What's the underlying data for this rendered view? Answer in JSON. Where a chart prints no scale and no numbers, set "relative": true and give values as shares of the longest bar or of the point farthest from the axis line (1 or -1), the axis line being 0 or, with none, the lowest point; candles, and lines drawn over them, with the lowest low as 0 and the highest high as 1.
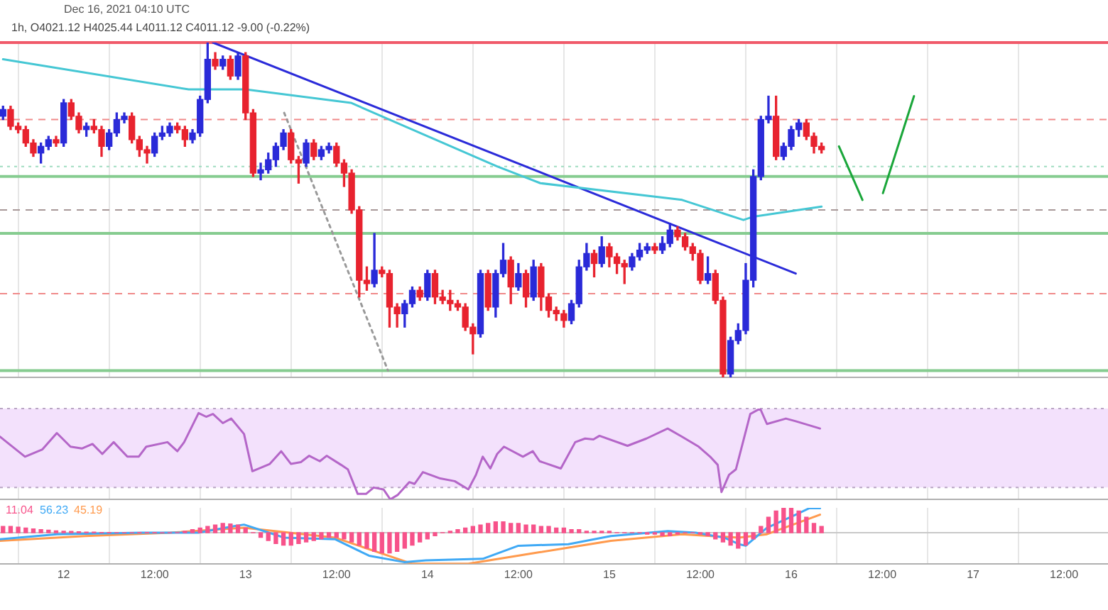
{
  "chart_data": [
    {
      "type": "candlestick",
      "relative": true,
      "grid": "x",
      "legend": false,
      "tick_labels": false,
      "annotations": [
        "Dec 16, 2021 04:10 UTC",
        "1h, O4021.12 H4025.44 L4011.12 C4011.12 -9.00 (-0.22%)"
      ],
      "xlim": [
        "2021-12-11T15:36",
        "2021-12-17T17:48"
      ],
      "xticks": [
        {
          "value": "2021-12-12",
          "label": null
        },
        {
          "value": "2021-12-12T12:00",
          "label": null
        },
        {
          "value": "2021-12-13",
          "label": null
        },
        {
          "value": "2021-12-13T12:00",
          "label": null
        },
        {
          "value": "2021-12-14",
          "label": null
        },
        {
          "value": "2021-12-14T12:00",
          "label": null
        },
        {
          "value": "2021-12-15",
          "label": null
        },
        {
          "value": "2021-12-15T12:00",
          "label": null
        },
        {
          "value": "2021-12-16",
          "label": null
        },
        {
          "value": "2021-12-16T12:00",
          "label": null
        },
        {
          "value": "2021-12-17",
          "label": null
        },
        {
          "value": "2021-12-17T12:00",
          "label": null
        }
      ],
      "x": [
        "2021-12-11T16:00",
        "2021-12-11T17:00",
        "2021-12-11T18:00",
        "2021-12-11T19:00",
        "2021-12-11T20:00",
        "2021-12-11T21:00",
        "2021-12-11T22:00",
        "2021-12-11T23:00",
        "2021-12-12T00:00",
        "2021-12-12T01:00",
        "2021-12-12T02:00",
        "2021-12-12T03:00",
        "2021-12-12T04:00",
        "2021-12-12T05:00",
        "2021-12-12T06:00",
        "2021-12-12T07:00",
        "2021-12-12T08:00",
        "2021-12-12T09:00",
        "2021-12-12T10:00",
        "2021-12-12T11:00",
        "2021-12-12T12:00",
        "2021-12-12T13:00",
        "2021-12-12T14:00",
        "2021-12-12T15:00",
        "2021-12-12T16:00",
        "2021-12-12T17:00",
        "2021-12-12T18:00",
        "2021-12-12T19:00",
        "2021-12-12T20:00",
        "2021-12-12T21:00",
        "2021-12-12T22:00",
        "2021-12-12T23:00",
        "2021-12-13T00:00",
        "2021-12-13T01:00",
        "2021-12-13T02:00",
        "2021-12-13T03:00",
        "2021-12-13T04:00",
        "2021-12-13T05:00",
        "2021-12-13T06:00",
        "2021-12-13T07:00",
        "2021-12-13T08:00",
        "2021-12-13T09:00",
        "2021-12-13T10:00",
        "2021-12-13T11:00",
        "2021-12-13T12:00",
        "2021-12-13T13:00",
        "2021-12-13T14:00",
        "2021-12-13T15:00",
        "2021-12-13T16:00",
        "2021-12-13T17:00",
        "2021-12-13T18:00",
        "2021-12-13T19:00",
        "2021-12-13T20:00",
        "2021-12-13T21:00",
        "2021-12-13T22:00",
        "2021-12-13T23:00",
        "2021-12-14T00:00",
        "2021-12-14T01:00",
        "2021-12-14T02:00",
        "2021-12-14T03:00",
        "2021-12-14T04:00",
        "2021-12-14T05:00",
        "2021-12-14T06:00",
        "2021-12-14T07:00",
        "2021-12-14T08:00",
        "2021-12-14T09:00",
        "2021-12-14T10:00",
        "2021-12-14T11:00",
        "2021-12-14T12:00",
        "2021-12-14T13:00",
        "2021-12-14T14:00",
        "2021-12-14T15:00",
        "2021-12-14T16:00",
        "2021-12-14T17:00",
        "2021-12-14T18:00",
        "2021-12-14T19:00",
        "2021-12-14T20:00",
        "2021-12-14T21:00",
        "2021-12-14T22:00",
        "2021-12-14T23:00",
        "2021-12-15T00:00",
        "2021-12-15T01:00",
        "2021-12-15T02:00",
        "2021-12-15T03:00",
        "2021-12-15T04:00",
        "2021-12-15T05:00",
        "2021-12-15T06:00",
        "2021-12-15T07:00",
        "2021-12-15T08:00",
        "2021-12-15T09:00",
        "2021-12-15T10:00",
        "2021-12-15T11:00",
        "2021-12-15T12:00",
        "2021-12-15T13:00",
        "2021-12-15T14:00",
        "2021-12-15T15:00",
        "2021-12-15T16:00",
        "2021-12-15T17:00",
        "2021-12-15T18:00",
        "2021-12-15T19:00",
        "2021-12-15T20:00",
        "2021-12-15T21:00",
        "2021-12-15T22:00",
        "2021-12-15T23:00",
        "2021-12-16T00:00",
        "2021-12-16T01:00",
        "2021-12-16T02:00",
        "2021-12-16T03:00",
        "2021-12-16T04:00"
      ],
      "ohlc": [
        [
          0.78,
          0.81,
          0.77,
          0.8
        ],
        [
          0.8,
          0.81,
          0.74,
          0.75
        ],
        [
          0.75,
          0.76,
          0.73,
          0.74
        ],
        [
          0.74,
          0.75,
          0.69,
          0.7
        ],
        [
          0.7,
          0.71,
          0.66,
          0.67
        ],
        [
          0.67,
          0.7,
          0.64,
          0.69
        ],
        [
          0.69,
          0.72,
          0.68,
          0.71
        ],
        [
          0.71,
          0.72,
          0.69,
          0.7
        ],
        [
          0.7,
          0.83,
          0.69,
          0.82
        ],
        [
          0.82,
          0.83,
          0.77,
          0.78
        ],
        [
          0.78,
          0.79,
          0.73,
          0.74
        ],
        [
          0.74,
          0.76,
          0.72,
          0.75
        ],
        [
          0.75,
          0.77,
          0.73,
          0.74
        ],
        [
          0.74,
          0.75,
          0.66,
          0.69
        ],
        [
          0.69,
          0.74,
          0.68,
          0.73
        ],
        [
          0.73,
          0.79,
          0.72,
          0.77
        ],
        [
          0.77,
          0.79,
          0.76,
          0.78
        ],
        [
          0.78,
          0.79,
          0.7,
          0.71
        ],
        [
          0.71,
          0.72,
          0.66,
          0.68
        ],
        [
          0.68,
          0.69,
          0.64,
          0.67
        ],
        [
          0.67,
          0.73,
          0.66,
          0.72
        ],
        [
          0.72,
          0.75,
          0.71,
          0.73
        ],
        [
          0.73,
          0.76,
          0.72,
          0.75
        ],
        [
          0.75,
          0.76,
          0.73,
          0.74
        ],
        [
          0.74,
          0.75,
          0.69,
          0.71
        ],
        [
          0.71,
          0.74,
          0.7,
          0.73
        ],
        [
          0.73,
          0.84,
          0.72,
          0.83
        ],
        [
          0.83,
          1.0,
          0.82,
          0.95
        ],
        [
          0.95,
          0.97,
          0.92,
          0.93
        ],
        [
          0.93,
          0.96,
          0.92,
          0.95
        ],
        [
          0.95,
          0.96,
          0.89,
          0.9
        ],
        [
          0.9,
          0.97,
          0.89,
          0.96
        ],
        [
          0.96,
          0.97,
          0.77,
          0.79
        ],
        [
          0.79,
          0.8,
          0.6,
          0.61
        ],
        [
          0.61,
          0.64,
          0.59,
          0.62
        ],
        [
          0.62,
          0.67,
          0.61,
          0.65
        ],
        [
          0.65,
          0.7,
          0.63,
          0.69
        ],
        [
          0.69,
          0.74,
          0.68,
          0.73
        ],
        [
          0.73,
          0.74,
          0.64,
          0.65
        ],
        [
          0.65,
          0.66,
          0.58,
          0.64
        ],
        [
          0.64,
          0.71,
          0.63,
          0.7
        ],
        [
          0.7,
          0.71,
          0.65,
          0.66
        ],
        [
          0.66,
          0.69,
          0.65,
          0.68
        ],
        [
          0.68,
          0.7,
          0.67,
          0.69
        ],
        [
          0.69,
          0.7,
          0.63,
          0.64
        ],
        [
          0.64,
          0.65,
          0.57,
          0.61
        ],
        [
          0.61,
          0.62,
          0.49,
          0.5
        ],
        [
          0.5,
          0.51,
          0.24,
          0.29
        ],
        [
          0.29,
          0.33,
          0.26,
          0.28
        ],
        [
          0.28,
          0.43,
          0.27,
          0.32
        ],
        [
          0.32,
          0.33,
          0.3,
          0.31
        ],
        [
          0.31,
          0.32,
          0.15,
          0.21
        ],
        [
          0.21,
          0.22,
          0.15,
          0.19
        ],
        [
          0.19,
          0.23,
          0.15,
          0.22
        ],
        [
          0.22,
          0.27,
          0.21,
          0.26
        ],
        [
          0.26,
          0.27,
          0.23,
          0.24
        ],
        [
          0.24,
          0.32,
          0.23,
          0.31
        ],
        [
          0.31,
          0.32,
          0.22,
          0.24
        ],
        [
          0.24,
          0.26,
          0.22,
          0.23
        ],
        [
          0.23,
          0.26,
          0.2,
          0.22
        ],
        [
          0.22,
          0.23,
          0.2,
          0.21
        ],
        [
          0.21,
          0.22,
          0.14,
          0.15
        ],
        [
          0.15,
          0.16,
          0.07,
          0.13
        ],
        [
          0.13,
          0.32,
          0.12,
          0.31
        ],
        [
          0.31,
          0.32,
          0.2,
          0.21
        ],
        [
          0.21,
          0.32,
          0.18,
          0.31
        ],
        [
          0.31,
          0.4,
          0.3,
          0.35
        ],
        [
          0.35,
          0.36,
          0.22,
          0.27
        ],
        [
          0.27,
          0.34,
          0.26,
          0.31
        ],
        [
          0.31,
          0.32,
          0.21,
          0.24
        ],
        [
          0.24,
          0.35,
          0.23,
          0.33
        ],
        [
          0.33,
          0.34,
          0.2,
          0.24
        ],
        [
          0.24,
          0.25,
          0.18,
          0.2
        ],
        [
          0.2,
          0.21,
          0.17,
          0.19
        ],
        [
          0.19,
          0.2,
          0.15,
          0.17
        ],
        [
          0.17,
          0.23,
          0.16,
          0.22
        ],
        [
          0.22,
          0.35,
          0.21,
          0.33
        ],
        [
          0.33,
          0.4,
          0.32,
          0.37
        ],
        [
          0.37,
          0.38,
          0.3,
          0.34
        ],
        [
          0.34,
          0.42,
          0.33,
          0.39
        ],
        [
          0.39,
          0.4,
          0.33,
          0.36
        ],
        [
          0.36,
          0.37,
          0.31,
          0.34
        ],
        [
          0.34,
          0.35,
          0.28,
          0.33
        ],
        [
          0.33,
          0.37,
          0.32,
          0.36
        ],
        [
          0.36,
          0.4,
          0.35,
          0.38
        ],
        [
          0.38,
          0.4,
          0.37,
          0.39
        ],
        [
          0.39,
          0.4,
          0.37,
          0.38
        ],
        [
          0.38,
          0.42,
          0.37,
          0.4
        ],
        [
          0.4,
          0.46,
          0.39,
          0.44
        ],
        [
          0.44,
          0.45,
          0.41,
          0.42
        ],
        [
          0.42,
          0.43,
          0.38,
          0.39
        ],
        [
          0.39,
          0.4,
          0.35,
          0.37
        ],
        [
          0.37,
          0.38,
          0.28,
          0.29
        ],
        [
          0.29,
          0.36,
          0.28,
          0.31
        ],
        [
          0.31,
          0.32,
          0.22,
          0.23
        ],
        [
          0.23,
          0.24,
          0.0,
          0.01
        ],
        [
          0.01,
          0.12,
          0.0,
          0.11
        ],
        [
          0.11,
          0.16,
          0.1,
          0.14
        ],
        [
          0.14,
          0.34,
          0.13,
          0.29
        ],
        [
          0.29,
          0.62,
          0.27,
          0.6
        ],
        [
          0.6,
          0.78,
          0.59,
          0.77
        ],
        [
          0.77,
          0.84,
          0.76,
          0.78
        ],
        [
          0.78,
          0.84,
          0.65,
          0.66
        ],
        [
          0.66,
          0.7,
          0.65,
          0.69
        ],
        [
          0.69,
          0.75,
          0.68,
          0.74
        ],
        [
          0.74,
          0.77,
          0.72,
          0.76
        ],
        [
          0.76,
          0.77,
          0.71,
          0.72
        ],
        [
          0.72,
          0.73,
          0.67,
          0.69
        ],
        [
          0.69,
          0.7,
          0.67,
          0.68
        ]
      ],
      "colors": [
        "#2a2ad8",
        "#e8232f",
        "#e8232f",
        "#e8232f",
        "#e8232f",
        "#2a2ad8",
        "#2a2ad8",
        "#e8232f",
        "#2a2ad8",
        "#e8232f",
        "#e8232f",
        "#2a2ad8",
        "#e8232f",
        "#e8232f",
        "#2a2ad8",
        "#2a2ad8",
        "#2a2ad8",
        "#e8232f",
        "#e8232f",
        "#e8232f",
        "#2a2ad8",
        "#2a2ad8",
        "#2a2ad8",
        "#e8232f",
        "#e8232f",
        "#2a2ad8",
        "#2a2ad8",
        "#2a2ad8",
        "#e8232f",
        "#2a2ad8",
        "#e8232f",
        "#2a2ad8",
        "#e8232f",
        "#e8232f",
        "#2a2ad8",
        "#2a2ad8",
        "#2a2ad8",
        "#2a2ad8",
        "#e8232f",
        "#e8232f",
        "#2a2ad8",
        "#e8232f",
        "#2a2ad8",
        "#2a2ad8",
        "#e8232f",
        "#e8232f",
        "#e8232f",
        "#e8232f",
        "#e8232f",
        "#2a2ad8",
        "#e8232f",
        "#e8232f",
        "#e8232f",
        "#2a2ad8",
        "#2a2ad8",
        "#e8232f",
        "#2a2ad8",
        "#e8232f",
        "#e8232f",
        "#e8232f",
        "#e8232f",
        "#e8232f",
        "#e8232f",
        "#2a2ad8",
        "#e8232f",
        "#2a2ad8",
        "#2a2ad8",
        "#e8232f",
        "#2a2ad8",
        "#e8232f",
        "#2a2ad8",
        "#e8232f",
        "#e8232f",
        "#e8232f",
        "#e8232f",
        "#2a2ad8",
        "#2a2ad8",
        "#2a2ad8",
        "#e8232f",
        "#2a2ad8",
        "#e8232f",
        "#e8232f",
        "#e8232f",
        "#2a2ad8",
        "#2a2ad8",
        "#2a2ad8",
        "#e8232f",
        "#2a2ad8",
        "#2a2ad8",
        "#e8232f",
        "#e8232f",
        "#e8232f",
        "#e8232f",
        "#2a2ad8",
        "#e8232f",
        "#e8232f",
        "#2a2ad8",
        "#2a2ad8",
        "#2a2ad8",
        "#2a2ad8",
        "#2a2ad8",
        "#2a2ad8",
        "#e8232f",
        "#2a2ad8",
        "#2a2ad8",
        "#2a2ad8",
        "#e8232f",
        "#e8232f",
        "#e8232f"
      ],
      "series": [
        {
          "type": "line",
          "color": "#45c7d4",
          "x": [
            "2021-12-11T16:00",
            "2021-12-12T16:30",
            "2021-12-13T00:00",
            "2021-12-13T13:54",
            "2021-12-14T09:12",
            "2021-12-14T14:54",
            "2021-12-15T09:36",
            "2021-12-15T17:42",
            "2021-12-15T19:00",
            "2021-12-16T04:00"
          ],
          "values": [
            0.95,
            0.86,
            0.86,
            0.82,
            0.63,
            0.58,
            0.53,
            0.47,
            0.48,
            0.51
          ]
        },
        {
          "type": "line",
          "color": "#2b2bd9",
          "x": [
            "2021-12-12T19:42",
            "2021-12-16T00:36"
          ],
          "values": [
            1.0,
            0.31
          ]
        },
        {
          "type": "line",
          "color": "#999999",
          "line_style": "dotted",
          "x": [
            "2021-12-13T05:06",
            "2021-12-13T18:48"
          ],
          "values": [
            0.79,
            0.02
          ]
        },
        {
          "type": "line",
          "color": "#1aa63a",
          "x": [
            "2021-12-16T06:18",
            "2021-12-16T09:24"
          ],
          "values": [
            0.69,
            0.53
          ]
        },
        {
          "type": "line",
          "color": "#1aa63a",
          "x": [
            "2021-12-16T12:06",
            "2021-12-16T16:12"
          ],
          "values": [
            0.55,
            0.84
          ]
        }
      ],
      "ref_lines": [
        {
          "axis": "y",
          "value": 1.0,
          "color": "#f05a6a",
          "line_style": "solid"
        },
        {
          "axis": "y",
          "value": 0.6,
          "color": "#86cc90",
          "line_style": "solid"
        },
        {
          "axis": "y",
          "value": 0.43,
          "color": "#86cc90",
          "line_style": "solid"
        },
        {
          "axis": "y",
          "value": 0.02,
          "color": "#86cc90",
          "line_style": "solid"
        },
        {
          "axis": "y",
          "value": 0.77,
          "color": "#f08a8a",
          "line_style": "dashed"
        },
        {
          "axis": "y",
          "value": 0.63,
          "color": "#9fdcc0",
          "line_style": "dotted"
        },
        {
          "axis": "y",
          "value": 0.5,
          "color": "#a89898",
          "line_style": "dashed"
        },
        {
          "axis": "y",
          "value": 0.25,
          "color": "#f08a8a",
          "line_style": "dashed"
        }
      ]
    },
    {
      "type": "line",
      "relative": true,
      "grid": "x",
      "legend": false,
      "tick_labels": false,
      "xlim": [
        "2021-12-11T15:36",
        "2021-12-17T17:48"
      ],
      "xticks": [
        {
          "value": "2021-12-12",
          "label": null
        },
        {
          "value": "2021-12-12T12:00",
          "label": null
        },
        {
          "value": "2021-12-13",
          "label": null
        },
        {
          "value": "2021-12-13T12:00",
          "label": null
        },
        {
          "value": "2021-12-14",
          "label": null
        },
        {
          "value": "2021-12-14T12:00",
          "label": null
        },
        {
          "value": "2021-12-15",
          "label": null
        },
        {
          "value": "2021-12-15T12:00",
          "label": null
        },
        {
          "value": "2021-12-16",
          "label": null
        },
        {
          "value": "2021-12-16T12:00",
          "label": null
        },
        {
          "value": "2021-12-17",
          "label": null
        },
        {
          "value": "2021-12-17T12:00",
          "label": null
        }
      ],
      "bands": [
        {
          "axis": "y",
          "from": 0.13,
          "to": 1.0,
          "color": "#f3e1fc"
        }
      ],
      "ref_lines": [
        {
          "axis": "y",
          "value": 0.13,
          "color": "#b9a6c4",
          "line_style": "dotted"
        },
        {
          "axis": "y",
          "value": 1.0,
          "color": "#b9a6c4",
          "line_style": "dotted"
        }
      ],
      "series": [
        {
          "color": "#b466c8",
          "x": [
            "2021-12-11T15:36",
            "2021-12-11T16:30",
            "2021-12-11T18:54",
            "2021-12-11T21:12",
            "2021-12-11T23:06",
            "2021-12-12T00:54",
            "2021-12-12T02:24",
            "2021-12-12T03:48",
            "2021-12-12T05:06",
            "2021-12-12T06:36",
            "2021-12-12T08:24",
            "2021-12-12T09:54",
            "2021-12-12T10:54",
            "2021-12-12T13:42",
            "2021-12-12T15:00",
            "2021-12-12T15:54",
            "2021-12-12T17:48",
            "2021-12-12T18:48",
            "2021-12-12T19:42",
            "2021-12-12T21:00",
            "2021-12-12T22:06",
            "2021-12-12T23:48",
            "2021-12-13T00:54",
            "2021-12-13T03:12",
            "2021-12-13T04:42",
            "2021-12-13T06:00",
            "2021-12-13T07:18",
            "2021-12-13T08:24",
            "2021-12-13T09:48",
            "2021-12-13T10:42",
            "2021-12-13T12:36",
            "2021-12-13T13:30",
            "2021-12-13T14:48",
            "2021-12-13T15:54",
            "2021-12-13T16:54",
            "2021-12-13T18:12",
            "2021-12-13T19:06",
            "2021-12-13T20:06",
            "2021-12-13T21:36",
            "2021-12-13T22:18",
            "2021-12-13T23:24",
            "2021-12-14T01:42",
            "2021-12-14T03:36",
            "2021-12-14T05:24",
            "2021-12-14T06:24",
            "2021-12-14T07:18",
            "2021-12-14T08:18",
            "2021-12-14T09:12",
            "2021-12-14T10:06",
            "2021-12-14T12:36",
            "2021-12-14T13:54",
            "2021-12-14T14:48",
            "2021-12-14T17:36",
            "2021-12-14T19:30",
            "2021-12-14T20:48",
            "2021-12-14T21:54",
            "2021-12-14T22:42",
            "2021-12-15T02:24",
            "2021-12-15T04:54",
            "2021-12-15T07:42",
            "2021-12-15T09:36",
            "2021-12-15T11:48",
            "2021-12-15T13:18",
            "2021-12-15T14:18",
            "2021-12-15T14:48",
            "2021-12-15T15:48",
            "2021-12-15T16:42",
            "2021-12-15T18:36",
            "2021-12-15T19:54",
            "2021-12-15T20:48",
            "2021-12-15T23:18",
            "2021-12-16T00:36",
            "2021-12-16T03:48"
          ],
          "values": [
            0.69,
            0.63,
            0.47,
            0.55,
            0.73,
            0.58,
            0.56,
            0.61,
            0.5,
            0.63,
            0.47,
            0.47,
            0.58,
            0.63,
            0.53,
            0.63,
            0.95,
            0.91,
            0.94,
            0.84,
            0.89,
            0.72,
            0.31,
            0.39,
            0.53,
            0.39,
            0.41,
            0.48,
            0.42,
            0.48,
            0.38,
            0.33,
            0.06,
            0.06,
            0.13,
            0.11,
            0.0,
            0.05,
            0.19,
            0.17,
            0.3,
            0.23,
            0.2,
            0.11,
            0.27,
            0.47,
            0.34,
            0.5,
            0.58,
            0.47,
            0.53,
            0.42,
            0.34,
            0.63,
            0.67,
            0.66,
            0.7,
            0.59,
            0.67,
            0.78,
            0.69,
            0.58,
            0.47,
            0.38,
            0.08,
            0.27,
            0.33,
            0.94,
            1.0,
            0.83,
            0.89,
            0.86,
            0.78
          ]
        }
      ]
    },
    {
      "type": "bar",
      "relative": true,
      "grid": "x",
      "legend": false,
      "tick_labels": "x",
      "xlim": [
        "2021-12-11T15:36",
        "2021-12-17T17:48"
      ],
      "xticks": [
        {
          "value": "2021-12-12",
          "label": "12"
        },
        {
          "value": "2021-12-12T12:00",
          "label": "12:00"
        },
        {
          "value": "2021-12-13",
          "label": "13"
        },
        {
          "value": "2021-12-13T12:00",
          "label": "12:00"
        },
        {
          "value": "2021-12-14",
          "label": "14"
        },
        {
          "value": "2021-12-14T12:00",
          "label": "12:00"
        },
        {
          "value": "2021-12-15",
          "label": "15"
        },
        {
          "value": "2021-12-15T12:00",
          "label": "12:00"
        },
        {
          "value": "2021-12-16",
          "label": "16"
        },
        {
          "value": "2021-12-16T12:00",
          "label": "12:00"
        },
        {
          "value": "2021-12-17",
          "label": "17"
        },
        {
          "value": "2021-12-17T12:00",
          "label": "12:00"
        }
      ],
      "annotations": [
        "11.04",
        "56.23",
        "45.19"
      ],
      "x": [
        "2021-12-11T16:00",
        "2021-12-11T17:00",
        "2021-12-11T18:00",
        "2021-12-11T19:00",
        "2021-12-11T20:00",
        "2021-12-11T21:00",
        "2021-12-11T22:00",
        "2021-12-11T23:00",
        "2021-12-12T00:00",
        "2021-12-12T01:00",
        "2021-12-12T02:00",
        "2021-12-12T03:00",
        "2021-12-12T04:00",
        "2021-12-12T05:00",
        "2021-12-12T06:00",
        "2021-12-12T07:00",
        "2021-12-12T08:00",
        "2021-12-12T09:00",
        "2021-12-12T10:00",
        "2021-12-12T11:00",
        "2021-12-12T12:00",
        "2021-12-12T13:00",
        "2021-12-12T14:00",
        "2021-12-12T15:00",
        "2021-12-12T16:00",
        "2021-12-12T17:00",
        "2021-12-12T18:00",
        "2021-12-12T19:00",
        "2021-12-12T20:00",
        "2021-12-12T21:00",
        "2021-12-12T22:00",
        "2021-12-12T23:00",
        "2021-12-13T00:00",
        "2021-12-13T01:00",
        "2021-12-13T02:00",
        "2021-12-13T03:00",
        "2021-12-13T04:00",
        "2021-12-13T05:00",
        "2021-12-13T06:00",
        "2021-12-13T07:00",
        "2021-12-13T08:00",
        "2021-12-13T09:00",
        "2021-12-13T10:00",
        "2021-12-13T11:00",
        "2021-12-13T12:00",
        "2021-12-13T13:00",
        "2021-12-13T14:00",
        "2021-12-13T15:00",
        "2021-12-13T16:00",
        "2021-12-13T17:00",
        "2021-12-13T18:00",
        "2021-12-13T19:00",
        "2021-12-13T20:00",
        "2021-12-13T21:00",
        "2021-12-13T22:00",
        "2021-12-13T23:00",
        "2021-12-14T00:00",
        "2021-12-14T01:00",
        "2021-12-14T02:00",
        "2021-12-14T03:00",
        "2021-12-14T04:00",
        "2021-12-14T05:00",
        "2021-12-14T06:00",
        "2021-12-14T07:00",
        "2021-12-14T08:00",
        "2021-12-14T09:00",
        "2021-12-14T10:00",
        "2021-12-14T11:00",
        "2021-12-14T12:00",
        "2021-12-14T13:00",
        "2021-12-14T14:00",
        "2021-12-14T15:00",
        "2021-12-14T16:00",
        "2021-12-14T17:00",
        "2021-12-14T18:00",
        "2021-12-14T19:00",
        "2021-12-14T20:00",
        "2021-12-14T21:00",
        "2021-12-14T22:00",
        "2021-12-14T23:00",
        "2021-12-15T00:00",
        "2021-12-15T01:00",
        "2021-12-15T02:00",
        "2021-12-15T03:00",
        "2021-12-15T04:00",
        "2021-12-15T05:00",
        "2021-12-15T06:00",
        "2021-12-15T07:00",
        "2021-12-15T08:00",
        "2021-12-15T09:00",
        "2021-12-15T10:00",
        "2021-12-15T11:00",
        "2021-12-15T12:00",
        "2021-12-15T13:00",
        "2021-12-15T14:00",
        "2021-12-15T15:00",
        "2021-12-15T16:00",
        "2021-12-15T17:00",
        "2021-12-15T18:00",
        "2021-12-15T19:00",
        "2021-12-15T20:00",
        "2021-12-15T21:00",
        "2021-12-15T22:00",
        "2021-12-15T23:00",
        "2021-12-16T00:00",
        "2021-12-16T01:00",
        "2021-12-16T02:00",
        "2021-12-16T03:00",
        "2021-12-16T04:00"
      ],
      "series": [
        {
          "type": "bar",
          "color": "#f7528a",
          "values": [
            0.2,
            0.2,
            0.18,
            0.15,
            0.12,
            0.1,
            0.08,
            0.06,
            0.05,
            0.04,
            0.03,
            0.02,
            0.02,
            0.01,
            0.01,
            0,
            0,
            0,
            0.01,
            0.01,
            0.01,
            0,
            0,
            0,
            0.05,
            0.1,
            0.15,
            0.2,
            0.25,
            0.3,
            0.28,
            0.25,
            0.15,
            0,
            -0.15,
            -0.25,
            -0.35,
            -0.4,
            -0.4,
            -0.35,
            -0.3,
            -0.25,
            -0.2,
            -0.15,
            -0.15,
            -0.2,
            -0.3,
            -0.4,
            -0.5,
            -0.6,
            -0.65,
            -0.65,
            -0.6,
            -0.5,
            -0.4,
            -0.3,
            -0.2,
            -0.1,
            0,
            0.05,
            0.1,
            0.15,
            0.2,
            0.25,
            0.3,
            0.35,
            0.35,
            0.3,
            0.3,
            0.25,
            0.25,
            0.2,
            0.2,
            0.15,
            0.15,
            0.1,
            0.1,
            0.05,
            0.05,
            0.05,
            0.05,
            0,
            0,
            0,
            0,
            -0.05,
            -0.05,
            -0.1,
            -0.1,
            -0.05,
            0,
            0,
            -0.05,
            -0.1,
            -0.2,
            -0.3,
            -0.4,
            -0.5,
            -0.4,
            -0.2,
            0.2,
            0.5,
            0.7,
            0.8,
            0.8,
            0.7,
            0.5,
            0.3,
            0.2
          ]
        },
        {
          "type": "line",
          "color": "#3fa9f5",
          "x": [
            "2021-12-11T15:36",
            "2021-12-11T23:06",
            "2021-12-12T10:18",
            "2021-12-12T17:48",
            "2021-12-12T22:30",
            "2021-12-12T23:48",
            "2021-12-13T05:06",
            "2021-12-13T11:48",
            "2021-12-13T16:18",
            "2021-12-13T21:00",
            "2021-12-13T23:48",
            "2021-12-14T07:18",
            "2021-12-14T12:00",
            "2021-12-14T18:36",
            "2021-12-15T00:12",
            "2021-12-15T07:42",
            "2021-12-15T11:24",
            "2021-12-15T15:12",
            "2021-12-15T17:06",
            "2021-12-15T18:00",
            "2021-12-15T20:48",
            "2021-12-16T00:36",
            "2021-12-16T02:24",
            "2021-12-16T03:48"
          ],
          "values": [
            -0.21,
            -0.05,
            0,
            0,
            0.21,
            0.26,
            -0.16,
            -0.21,
            -0.74,
            -0.95,
            -0.89,
            -0.84,
            -0.42,
            -0.37,
            -0.11,
            0.05,
            0,
            -0.16,
            -0.37,
            -0.42,
            0.16,
            0.58,
            0.79,
            0.79
          ]
        },
        {
          "type": "line",
          "color": "#ff9a4d",
          "x": [
            "2021-12-11T15:36",
            "2021-12-12T02:48",
            "2021-12-12T14:06",
            "2021-12-12T23:48",
            "2021-12-13T11:48",
            "2021-12-13T22:00",
            "2021-12-14T05:24",
            "2021-12-14T14:48",
            "2021-12-15T00:12",
            "2021-12-15T09:36",
            "2021-12-15T17:06",
            "2021-12-15T20:48",
            "2021-12-16T03:48"
          ],
          "values": [
            -0.26,
            -0.11,
            0,
            0.16,
            -0.16,
            -1,
            -1,
            -0.63,
            -0.26,
            -0.05,
            -0.16,
            -0.05,
            0.58
          ]
        }
      ]
    }
  ]
}
